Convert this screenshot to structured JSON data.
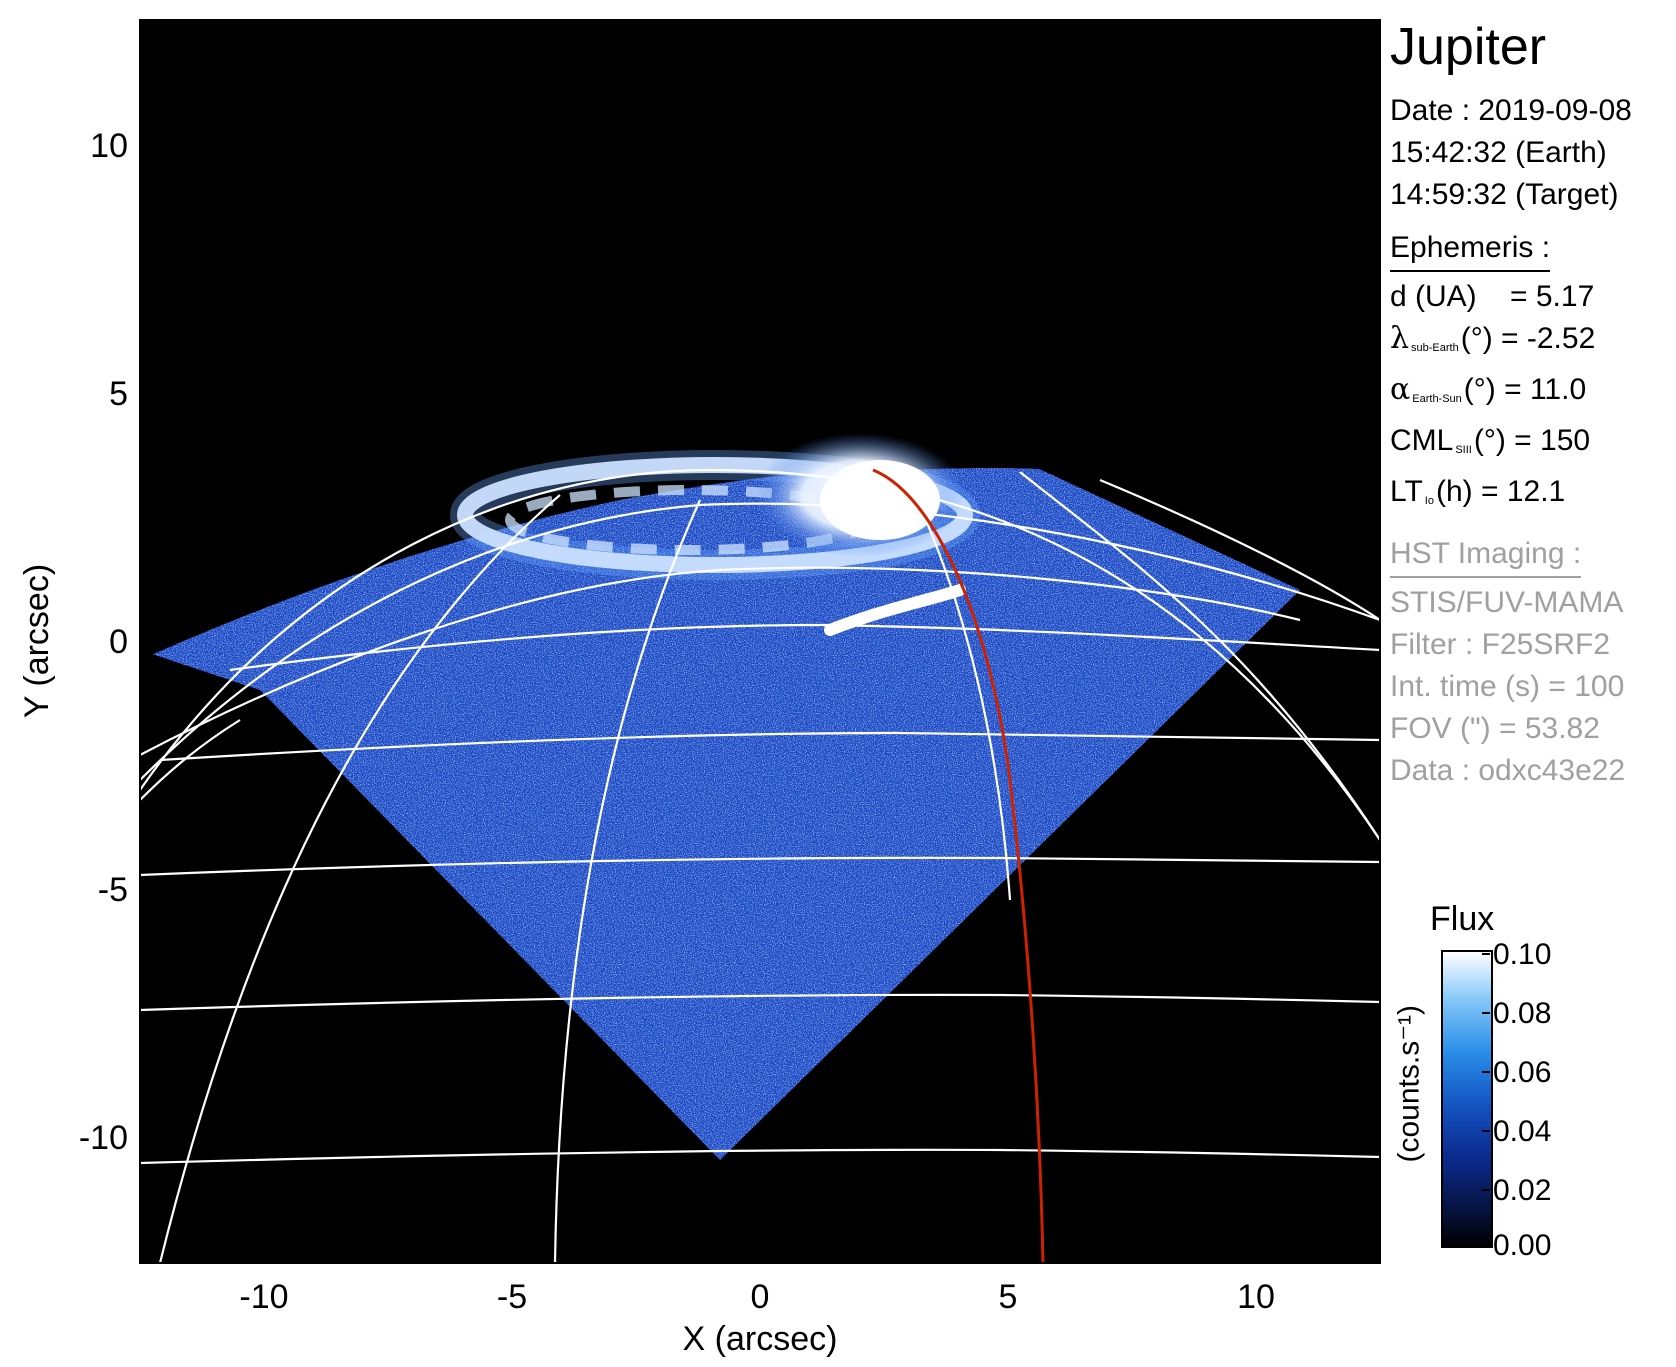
{
  "plot": {
    "x_ticks": [
      "-10",
      "-5",
      "0",
      "5",
      "10"
    ],
    "y_ticks": [
      "10",
      "5",
      "0",
      "-5",
      "-10"
    ],
    "x_label": "X (arcsec)",
    "y_label": "Y (arcsec)"
  },
  "header": {
    "title": "Jupiter",
    "date": "Date : 2019-09-08",
    "time_earth": "15:42:32 (Earth)",
    "time_target": "14:59:32 (Target)"
  },
  "ephemeris": {
    "heading": "Ephemeris :",
    "d": "d (UA)    = 5.17",
    "lambda_symbol": "λ",
    "lambda_sub": "sub-Earth",
    "lambda_rest": "(°) = -2.52",
    "alpha_symbol": "α",
    "alpha_sub": "Earth-Sun",
    "alpha_rest": "(°) = 11.0",
    "cml_main": "CML",
    "cml_sub": "SIII",
    "cml_rest": "(°) = 150",
    "lt_main": "LT",
    "lt_sub": "Io",
    "lt_rest": "(h) = 12.1"
  },
  "hst": {
    "heading": "HST Imaging :",
    "instrument": "STIS/FUV-MAMA",
    "filter": "Filter : F25SRF2",
    "int_time": "Int. time (s) = 100",
    "fov": "FOV (\") = 53.82",
    "data": "Data : odxc43e22"
  },
  "colorbar": {
    "title": "Flux",
    "unit": "(counts.s⁻¹)",
    "ticks": [
      "0.10",
      "0.08",
      "0.06",
      "0.04",
      "0.02",
      "0.00"
    ]
  },
  "colors": {
    "background": "#000000",
    "grid": "#ffffff",
    "footprint_line": "#cc2200",
    "emission": "#1d4fd0"
  }
}
